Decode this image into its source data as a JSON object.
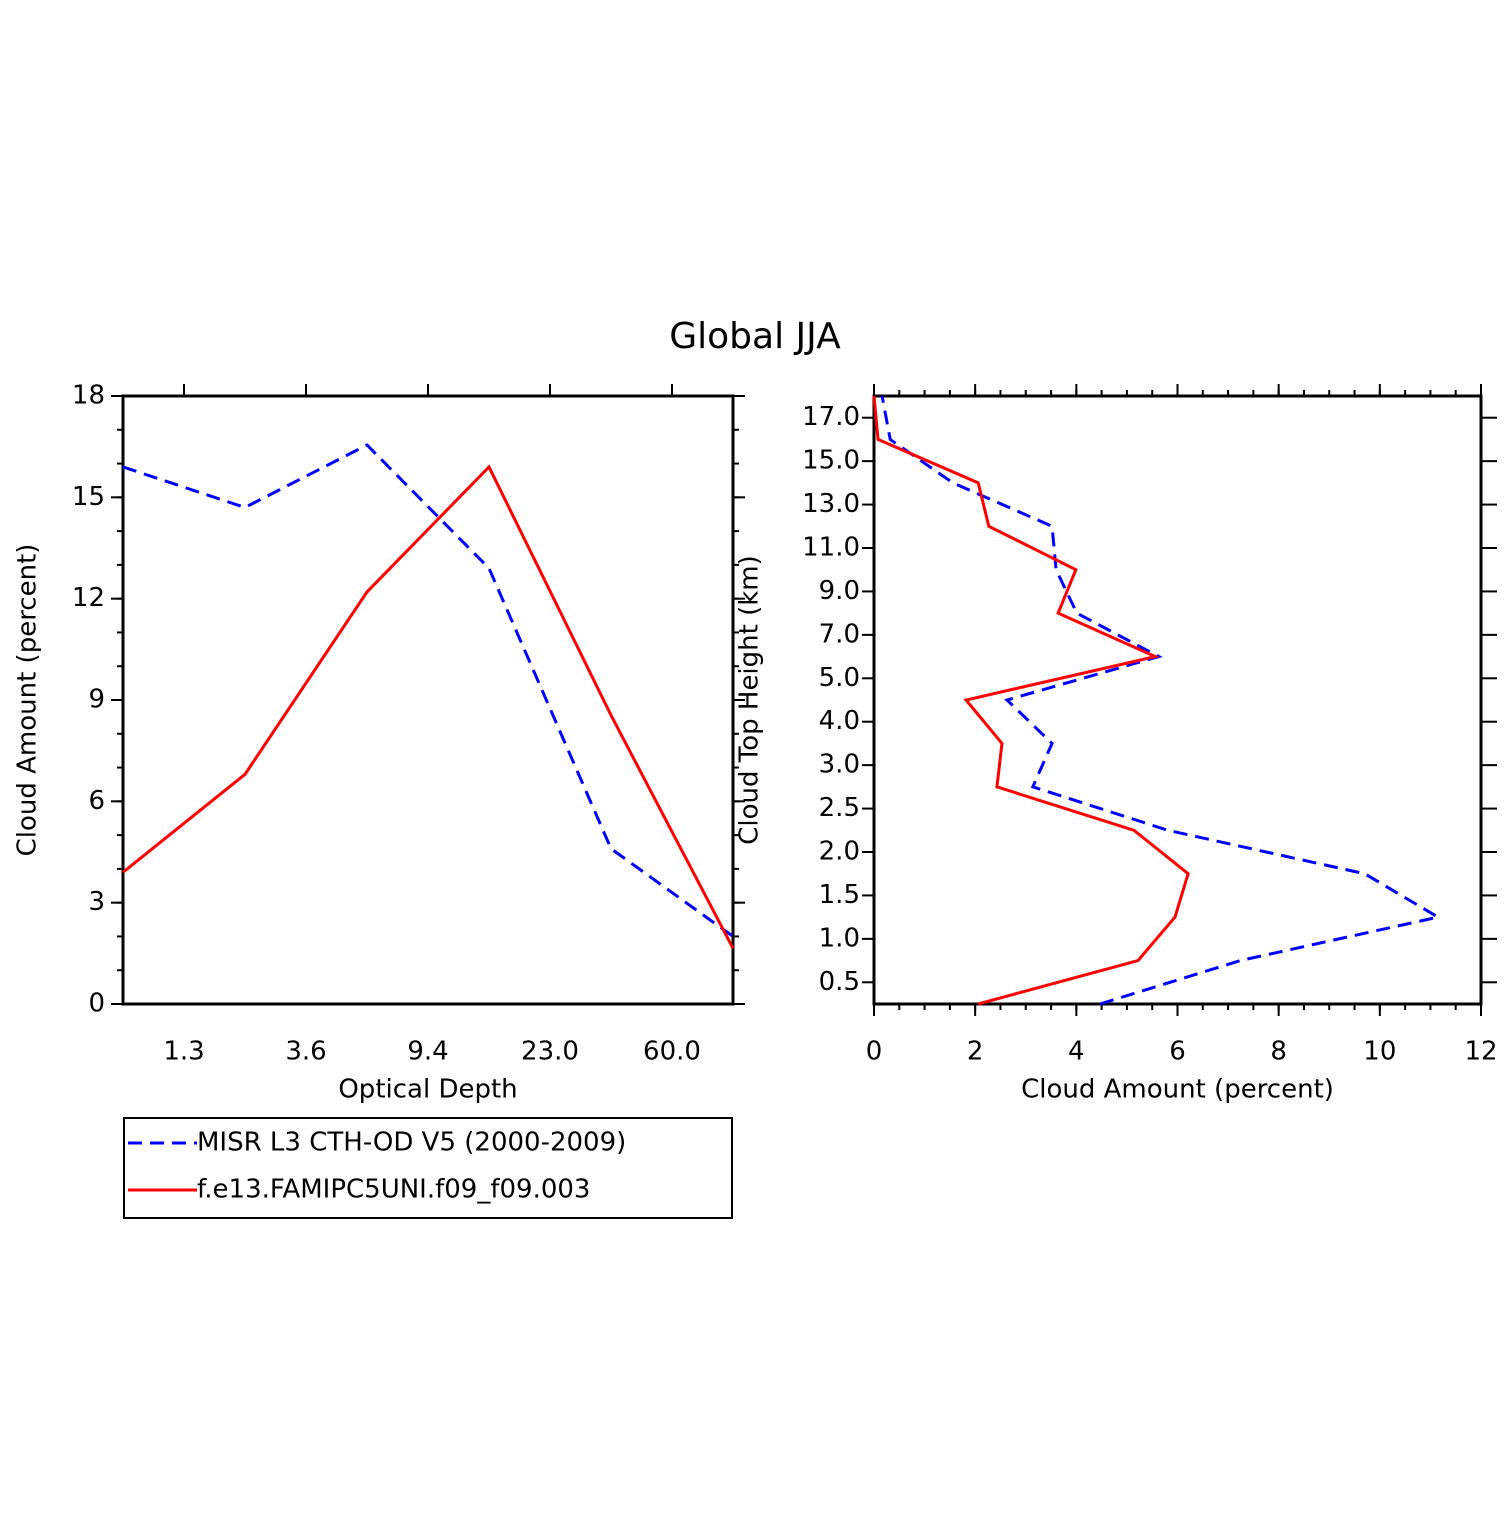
{
  "title": "Global JJA",
  "chart_data": [
    {
      "type": "line",
      "xlabel": "Optical Depth",
      "ylabel": "Cloud Amount (percent)",
      "categories": [
        null,
        null,
        null,
        null,
        null,
        null
      ],
      "xtick_labels": [
        "1.3",
        "3.6",
        "9.4",
        "23.0",
        "60.0"
      ],
      "ylim": [
        0,
        18
      ],
      "yticks": [
        0,
        3,
        6,
        9,
        12,
        15,
        18
      ],
      "y_minor_step": 1,
      "legend": "below",
      "series": [
        {
          "name": "MISR L3 CTH-OD V5 (2000-2009)",
          "color": "#0000ff",
          "dash": true,
          "values": [
            15.9,
            14.7,
            16.55,
            12.9,
            4.6,
            2.0
          ]
        },
        {
          "name": "f.e13.FAMIPC5UNI.f09_f09.003",
          "color": "#ff0000",
          "dash": false,
          "values": [
            3.9,
            6.8,
            12.2,
            15.9,
            8.55,
            1.65
          ]
        }
      ]
    },
    {
      "type": "profile",
      "xlabel": "Cloud Amount (percent)",
      "ylabel": "Cloud Top Height (km)",
      "categories": [
        null,
        null,
        null,
        null,
        null,
        null,
        null,
        null,
        null,
        null,
        null,
        null,
        null,
        null,
        null
      ],
      "ytick_labels": [
        "0.5",
        "1.0",
        "1.5",
        "2.0",
        "2.5",
        "3.0",
        "4.0",
        "5.0",
        "7.0",
        "9.0",
        "11.0",
        "13.0",
        "15.0",
        "17.0"
      ],
      "xlim": [
        0,
        12
      ],
      "xticks": [
        0,
        2,
        4,
        6,
        8,
        10,
        12
      ],
      "x_minor_step": 0.5,
      "series": [
        {
          "color": "#0000ff",
          "dash": true,
          "values": [
            4.47,
            7.24,
            11.15,
            9.7,
            5.81,
            3.14,
            3.52,
            2.63,
            5.63,
            4.01,
            3.6,
            3.52,
            1.56,
            0.32,
            0.16
          ]
        },
        {
          "color": "#ff0000",
          "dash": false,
          "values": [
            2.06,
            5.22,
            5.95,
            6.21,
            5.14,
            2.43,
            2.53,
            1.82,
            5.56,
            3.64,
            3.99,
            2.27,
            2.06,
            0.08,
            0
          ]
        }
      ]
    }
  ]
}
